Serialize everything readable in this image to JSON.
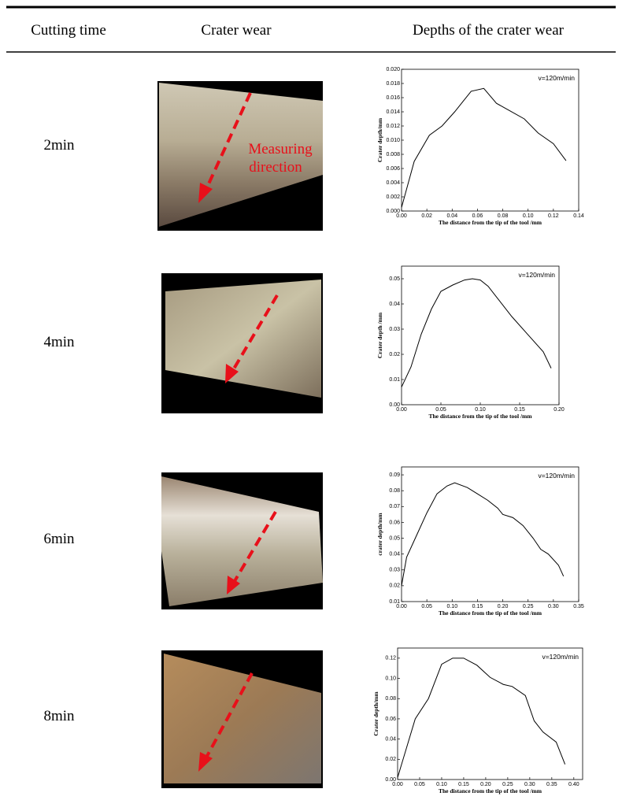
{
  "table": {
    "headers": [
      "Cutting time",
      "Crater wear",
      "Depths of the crater wear"
    ],
    "rows": [
      {
        "time": "2min",
        "annotation": [
          "Measuring",
          "direction"
        ],
        "chart": {
          "type": "line",
          "annotation": "v=120m/min",
          "ylabel": "Crater depth/mm",
          "xlabel": "The distance from the tip of the tool /mm",
          "x": [
            0,
            0.01,
            0.022,
            0.032,
            0.042,
            0.055,
            0.065,
            0.075,
            0.085,
            0.097,
            0.108,
            0.12,
            0.13
          ],
          "values": [
            0.0005,
            0.007,
            0.0107,
            0.012,
            0.014,
            0.0169,
            0.0173,
            0.0152,
            0.0142,
            0.013,
            0.011,
            0.0095,
            0.0071
          ],
          "xlim": [
            0,
            0.14
          ],
          "ylim": [
            0,
            0.02
          ],
          "xticks": [
            {
              "value": 0,
              "label": "0.00"
            },
            0.02,
            0.04,
            0.06,
            0.08,
            {
              "value": 0.1,
              "label": "0.10"
            },
            0.12,
            0.14
          ],
          "yticks": [
            {
              "value": 0,
              "label": "0.000"
            },
            0.002,
            0.004,
            0.006,
            0.008,
            {
              "value": 0.01,
              "label": "0.010"
            },
            0.012,
            0.014,
            0.016,
            0.018,
            {
              "value": 0.02,
              "label": "0.020"
            }
          ],
          "color": "#000000"
        }
      },
      {
        "time": "4min",
        "chart": {
          "type": "line",
          "annotation": "v=120m/min",
          "ylabel": "Crater depth /mm",
          "xlabel": "The distance from the tip of the tool /mm",
          "x": [
            0,
            0.012,
            0.025,
            0.038,
            0.05,
            0.065,
            0.08,
            0.09,
            0.1,
            0.11,
            0.12,
            0.14,
            0.16,
            0.18,
            0.19
          ],
          "values": [
            0.007,
            0.015,
            0.028,
            0.038,
            0.045,
            0.0475,
            0.0495,
            0.05,
            0.0495,
            0.047,
            0.043,
            0.035,
            0.028,
            0.021,
            0.0145
          ],
          "xlim": [
            0,
            0.2
          ],
          "ylim": [
            0,
            0.055
          ],
          "xticks": [
            {
              "value": 0,
              "label": "0.00"
            },
            0.05,
            {
              "value": 0.1,
              "label": "0.10"
            },
            0.15,
            {
              "value": 0.2,
              "label": "0.20"
            }
          ],
          "yticks": [
            {
              "value": 0,
              "label": "0.00"
            },
            0.01,
            0.02,
            0.03,
            0.04,
            0.05
          ],
          "color": "#000000"
        }
      },
      {
        "time": "6min",
        "chart": {
          "type": "line",
          "annotation": "v=120m/min",
          "ylabel": "crater depth/mm",
          "xlabel": "The distance from the tip of the tool /mm",
          "x": [
            0,
            0.01,
            0.03,
            0.05,
            0.07,
            0.09,
            0.105,
            0.13,
            0.15,
            0.17,
            0.19,
            0.2,
            0.22,
            0.24,
            0.26,
            0.275,
            0.29,
            0.31,
            0.32
          ],
          "values": [
            0.02,
            0.038,
            0.052,
            0.066,
            0.078,
            0.083,
            0.085,
            0.082,
            0.078,
            0.074,
            0.069,
            0.065,
            0.063,
            0.058,
            0.05,
            0.043,
            0.04,
            0.033,
            0.026
          ],
          "xlim": [
            0,
            0.35
          ],
          "ylim": [
            0.01,
            0.095
          ],
          "xticks": [
            {
              "value": 0,
              "label": "0.00"
            },
            0.05,
            {
              "value": 0.1,
              "label": "0.10"
            },
            0.15,
            {
              "value": 0.2,
              "label": "0.20"
            },
            0.25,
            {
              "value": 0.3,
              "label": "0.30"
            },
            0.35
          ],
          "yticks": [
            0.01,
            0.02,
            0.03,
            0.04,
            0.05,
            0.06,
            0.07,
            0.08,
            0.09
          ],
          "color": "#000000"
        }
      },
      {
        "time": "8min",
        "chart": {
          "type": "line",
          "annotation": "v=120m/min",
          "ylabel": "Crater depth/mm",
          "xlabel": "The distance from the tip of the tool /mm",
          "x": [
            0,
            0.04,
            0.07,
            0.1,
            0.125,
            0.15,
            0.18,
            0.21,
            0.24,
            0.26,
            0.29,
            0.31,
            0.33,
            0.36,
            0.38
          ],
          "values": [
            0.002,
            0.06,
            0.08,
            0.114,
            0.12,
            0.12,
            0.113,
            0.101,
            0.094,
            0.092,
            0.083,
            0.058,
            0.047,
            0.037,
            0.015
          ],
          "xlim": [
            0,
            0.42
          ],
          "ylim": [
            0,
            0.13
          ],
          "xticks": [
            {
              "value": 0,
              "label": "0.00"
            },
            0.05,
            {
              "value": 0.1,
              "label": "0.10"
            },
            0.15,
            {
              "value": 0.2,
              "label": "0.20"
            },
            0.25,
            {
              "value": 0.3,
              "label": "0.30"
            },
            0.35,
            {
              "value": 0.4,
              "label": "0.40"
            }
          ],
          "yticks": [
            {
              "value": 0,
              "label": "0.00"
            },
            0.02,
            0.04,
            0.06,
            0.08,
            {
              "value": 0.1,
              "label": "0.10"
            },
            0.12
          ],
          "color": "#000000"
        }
      }
    ]
  }
}
